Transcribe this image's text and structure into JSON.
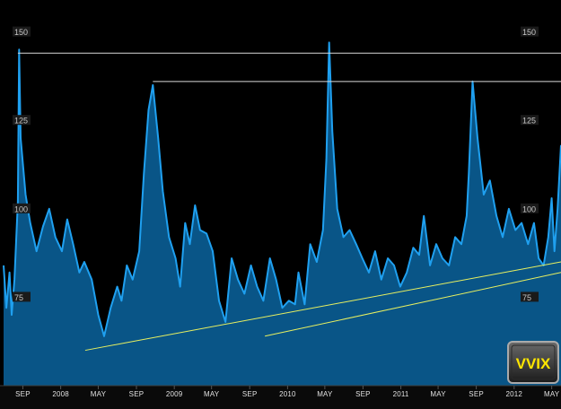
{
  "chart_data": {
    "type": "area",
    "title": "",
    "xlabel": "",
    "ylabel": "",
    "ylim": [
      50,
      157
    ],
    "y_ticks": [
      75,
      100,
      125,
      150
    ],
    "x_range": [
      "2007-07-01",
      "2012-05-31"
    ],
    "x_tick_labels": [
      "SEP",
      "2008",
      "MAY",
      "SEP",
      "2009",
      "MAY",
      "SEP",
      "2010",
      "MAY",
      "SEP",
      "2011",
      "MAY",
      "SEP",
      "2012",
      "MAY"
    ],
    "x_tick_dates": [
      "2007-09-01",
      "2008-01-01",
      "2008-05-01",
      "2008-09-01",
      "2009-01-01",
      "2009-05-01",
      "2009-09-01",
      "2010-01-01",
      "2010-05-01",
      "2010-09-01",
      "2011-01-01",
      "2011-05-01",
      "2011-09-01",
      "2012-01-01",
      "2012-05-01"
    ],
    "series": [
      {
        "x": [
          "2007-07-01",
          "2007-07-10",
          "2007-07-20",
          "2007-07-27",
          "2007-08-05",
          "2007-08-16",
          "2007-08-20",
          "2007-08-25",
          "2007-09-10",
          "2007-09-25",
          "2007-10-15",
          "2007-11-05",
          "2007-11-25",
          "2007-12-15",
          "2008-01-05",
          "2008-01-22",
          "2008-02-10",
          "2008-03-01",
          "2008-03-17",
          "2008-04-10",
          "2008-05-01",
          "2008-05-20",
          "2008-06-10",
          "2008-07-01",
          "2008-07-15",
          "2008-08-01",
          "2008-08-20",
          "2008-09-10",
          "2008-09-25",
          "2008-10-10",
          "2008-10-24",
          "2008-11-10",
          "2008-11-25",
          "2008-12-15",
          "2009-01-05",
          "2009-01-20",
          "2009-02-05",
          "2009-02-20",
          "2009-03-09",
          "2009-03-25",
          "2009-04-15",
          "2009-05-05",
          "2009-05-25",
          "2009-06-15",
          "2009-07-05",
          "2009-07-25",
          "2009-08-15",
          "2009-09-05",
          "2009-09-25",
          "2009-10-15",
          "2009-11-05",
          "2009-11-25",
          "2009-12-15",
          "2010-01-05",
          "2010-01-25",
          "2010-02-05",
          "2010-02-25",
          "2010-03-15",
          "2010-04-05",
          "2010-04-25",
          "2010-05-06",
          "2010-05-15",
          "2010-05-25",
          "2010-06-10",
          "2010-06-30",
          "2010-07-20",
          "2010-08-10",
          "2010-08-30",
          "2010-09-20",
          "2010-10-10",
          "2010-10-30",
          "2010-11-20",
          "2010-12-10",
          "2010-12-30",
          "2011-01-20",
          "2011-02-10",
          "2011-03-01",
          "2011-03-16",
          "2011-04-05",
          "2011-04-25",
          "2011-05-15",
          "2011-06-05",
          "2011-06-25",
          "2011-07-15",
          "2011-08-01",
          "2011-08-08",
          "2011-08-20",
          "2011-09-05",
          "2011-09-25",
          "2011-10-15",
          "2011-11-05",
          "2011-11-25",
          "2011-12-15",
          "2012-01-05",
          "2012-01-25",
          "2012-02-15",
          "2012-03-05",
          "2012-03-20",
          "2012-04-05",
          "2012-04-20",
          "2012-05-01",
          "2012-05-10",
          "2012-05-20",
          "2012-05-31"
        ],
        "values": [
          84,
          72,
          82,
          70,
          80,
          102,
          145,
          120,
          104,
          96,
          88,
          95,
          100,
          92,
          88,
          97,
          90,
          82,
          85,
          80,
          70,
          64,
          72,
          78,
          74,
          84,
          80,
          88,
          110,
          128,
          135,
          120,
          105,
          92,
          86,
          78,
          96,
          90,
          101,
          94,
          93,
          88,
          74,
          68,
          86,
          80,
          76,
          84,
          78,
          74,
          86,
          80,
          72,
          74,
          73,
          82,
          73,
          90,
          85,
          94,
          114,
          147,
          122,
          100,
          92,
          94,
          90,
          86,
          82,
          88,
          80,
          86,
          84,
          78,
          82,
          89,
          87,
          98,
          84,
          90,
          86,
          84,
          92,
          90,
          98,
          110,
          136,
          120,
          104,
          108,
          98,
          92,
          100,
          94,
          96,
          90,
          96,
          86,
          84,
          92,
          103,
          88,
          100,
          118
        ]
      }
    ],
    "annotations": [
      {
        "type": "horizontal_line",
        "y": 144,
        "x_start": "2007-08-16",
        "x_end": "2012-05-31"
      },
      {
        "type": "horizontal_line",
        "y": 136,
        "x_start": "2008-10-24",
        "x_end": "2012-05-31"
      },
      {
        "type": "trend_line",
        "from": {
          "x": "2008-03-20",
          "y": 60
        },
        "to": {
          "x": "2012-05-31",
          "y": 85
        }
      },
      {
        "type": "trend_line",
        "from": {
          "x": "2009-10-20",
          "y": 64
        },
        "to": {
          "x": "2012-05-31",
          "y": 82
        }
      }
    ],
    "grid": false,
    "legend": "none",
    "logo": "VVIX",
    "colors": {
      "background": "#000000",
      "line": "#1fa0f0",
      "fill": "#0a5a8e",
      "ref_line": "#d8d8d8",
      "trend_line": "#e8f060",
      "logo_text": "#ffe600"
    }
  }
}
